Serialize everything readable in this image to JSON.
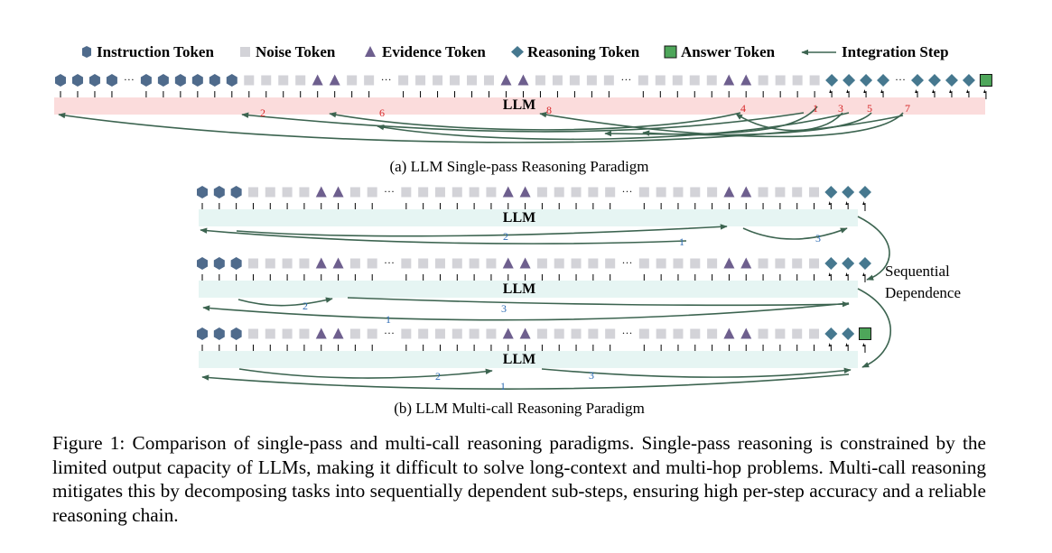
{
  "legend": {
    "instruction": "Instruction Token",
    "noise": "Noise Token",
    "evidence": "Evidence Token",
    "reasoning": "Reasoning Token",
    "answer": "Answer Token",
    "integration": "Integration Step"
  },
  "ellipsis": "···",
  "llm_label": "LLM",
  "panel_a": {
    "caption": "(a) LLM Single-pass Reasoning Paradigm",
    "step_numbers": [
      "2",
      "6",
      "8",
      "4",
      "1",
      "3",
      "5",
      "7"
    ]
  },
  "panel_b": {
    "caption": "(b) LLM Multi-call Reasoning Paradigm",
    "calls": [
      {
        "step_numbers": [
          "2",
          "1",
          "3"
        ]
      },
      {
        "step_numbers": [
          "2",
          "1",
          "3"
        ]
      },
      {
        "step_numbers": [
          "2",
          "3",
          "1"
        ]
      }
    ],
    "dependency_label_line1": "Sequential",
    "dependency_label_line2": "Dependence"
  },
  "figure_caption": {
    "label": "Figure 1:",
    "text": "Comparison of single-pass and multi-call reasoning paradigms. Single-pass reasoning is constrained by the limited output capacity of LLMs, making it difficult to solve long-context and multi-hop problems. Multi-call reasoning mitigates this by decomposing tasks into sequentially dependent sub-steps, ensuring high per-step accuracy and a reliable reasoning chain."
  },
  "colors": {
    "instruction": "#4f6b8c",
    "noise": "#d3d3d8",
    "evidence": "#6e5f8e",
    "reasoning": "#46788f",
    "answer": "#4ea65a",
    "arrow": "#3c6450",
    "bar_a": "#fbdcdc",
    "bar_b": "#e6f5f3",
    "step_red": "#d62728",
    "step_blue": "#2f6db5"
  }
}
